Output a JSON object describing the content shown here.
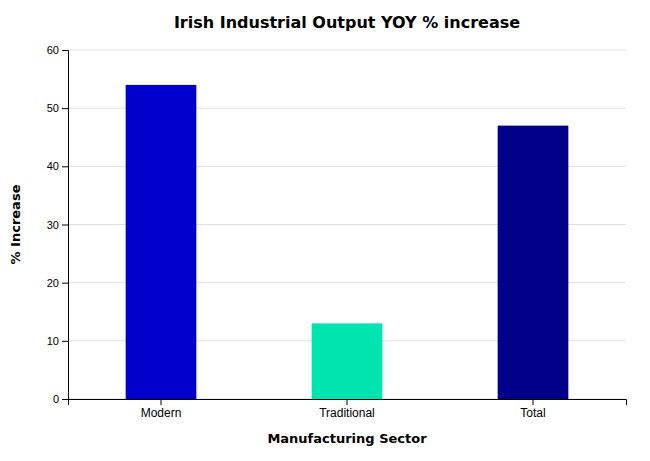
{
  "chart_data": {
    "type": "bar",
    "title": "Irish Industrial Output YOY % increase",
    "categories": [
      "Modern",
      "Traditional",
      "Total"
    ],
    "values": [
      54,
      13,
      47
    ],
    "colors": [
      "#0000cc",
      "#00e5b0",
      "#00008b"
    ],
    "xlabel": "Manufacturing Sector",
    "ylabel": "% Increase",
    "ylim": [
      0,
      60
    ],
    "yticks": [
      0,
      10,
      20,
      30,
      40,
      50,
      60
    ],
    "grid": true
  }
}
